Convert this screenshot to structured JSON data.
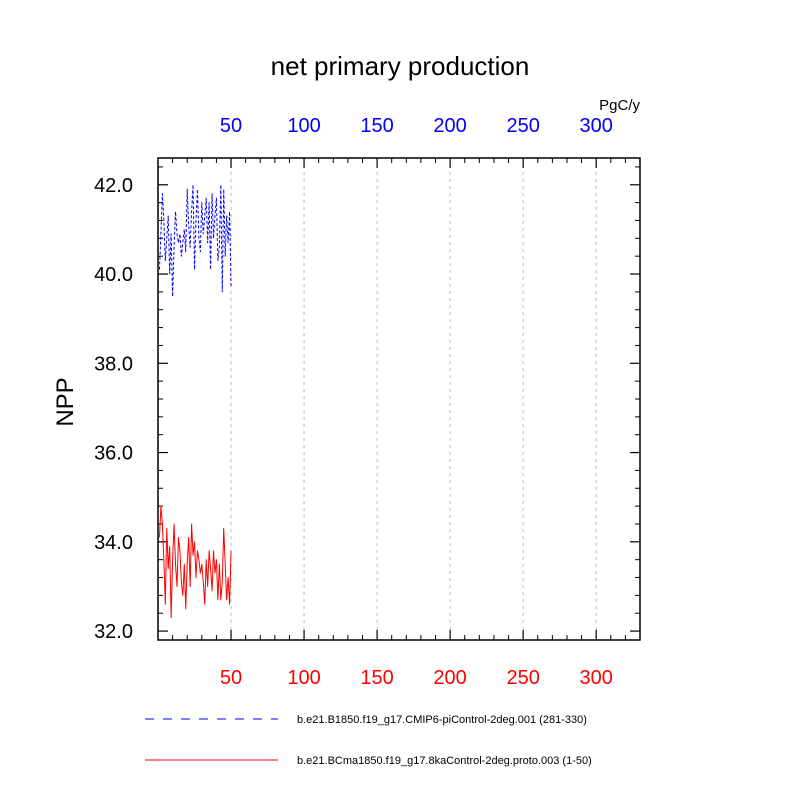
{
  "chart_data": {
    "type": "line",
    "title": "net primary production",
    "units_label": "PgC/y",
    "ylabel": "NPP",
    "xlim": [
      0,
      330
    ],
    "ylim": [
      31.8,
      42.6
    ],
    "x_ticks": [
      50,
      100,
      150,
      200,
      250,
      300
    ],
    "y_ticks": [
      32.0,
      34.0,
      36.0,
      38.0,
      40.0,
      42.0
    ],
    "y_tick_labels": [
      "32.0",
      "34.0",
      "36.0",
      "38.0",
      "40.0",
      "42.0"
    ],
    "top_axis_color": "#0000ff",
    "bottom_axis_color": "#ff0000",
    "grid": "vertical dashed",
    "series": [
      {
        "name": "b.e21.B1850.f19_g17.CMIP6-piControl-2deg.001 (281-330)",
        "color": "#0000ff",
        "style": "dashed",
        "x": [
          1,
          2,
          3,
          4,
          5,
          6,
          7,
          8,
          9,
          10,
          11,
          12,
          13,
          14,
          15,
          16,
          17,
          18,
          19,
          20,
          21,
          22,
          23,
          24,
          25,
          26,
          27,
          28,
          29,
          30,
          31,
          32,
          33,
          34,
          35,
          36,
          37,
          38,
          39,
          40,
          41,
          42,
          43,
          44,
          45,
          46,
          47,
          48,
          49,
          50
        ],
        "values": [
          40.1,
          40.9,
          41.8,
          41.2,
          40.3,
          40.8,
          41.3,
          40.0,
          40.9,
          39.5,
          40.6,
          41.4,
          40.9,
          40.7,
          40.9,
          40.4,
          40.7,
          41.0,
          40.5,
          41.9,
          41.1,
          40.6,
          41.4,
          42.0,
          40.1,
          41.2,
          41.9,
          40.8,
          40.5,
          41.6,
          40.9,
          41.3,
          41.7,
          40.7,
          41.6,
          40.1,
          41.8,
          40.8,
          41.3,
          41.7,
          40.3,
          40.6,
          42.0,
          39.6,
          41.9,
          40.4,
          41.3,
          40.7,
          41.4,
          39.7
        ]
      },
      {
        "name": "b.e21.BCma1850.f19_g17.8kaControl-2deg.proto.003 (1-50)",
        "color": "#ff0000",
        "style": "solid",
        "x": [
          1,
          2,
          3,
          4,
          5,
          6,
          7,
          8,
          9,
          10,
          11,
          12,
          13,
          14,
          15,
          16,
          17,
          18,
          19,
          20,
          21,
          22,
          23,
          24,
          25,
          26,
          27,
          28,
          29,
          30,
          31,
          32,
          33,
          34,
          35,
          36,
          37,
          38,
          39,
          40,
          41,
          42,
          43,
          44,
          45,
          46,
          47,
          48,
          49,
          50
        ],
        "values": [
          34.1,
          34.8,
          34.4,
          33.6,
          32.6,
          34.3,
          33.4,
          33.9,
          32.3,
          33.6,
          34.4,
          33.5,
          33.0,
          34.1,
          33.8,
          33.1,
          32.8,
          33.5,
          32.5,
          33.5,
          34.1,
          33.0,
          34.4,
          33.7,
          34.0,
          33.2,
          33.8,
          33.6,
          33.3,
          33.5,
          33.1,
          32.6,
          33.6,
          33.0,
          33.8,
          33.4,
          32.9,
          33.8,
          33.3,
          33.6,
          32.7,
          33.5,
          32.7,
          33.1,
          34.3,
          33.5,
          32.7,
          33.2,
          32.6,
          33.8
        ]
      }
    ]
  }
}
